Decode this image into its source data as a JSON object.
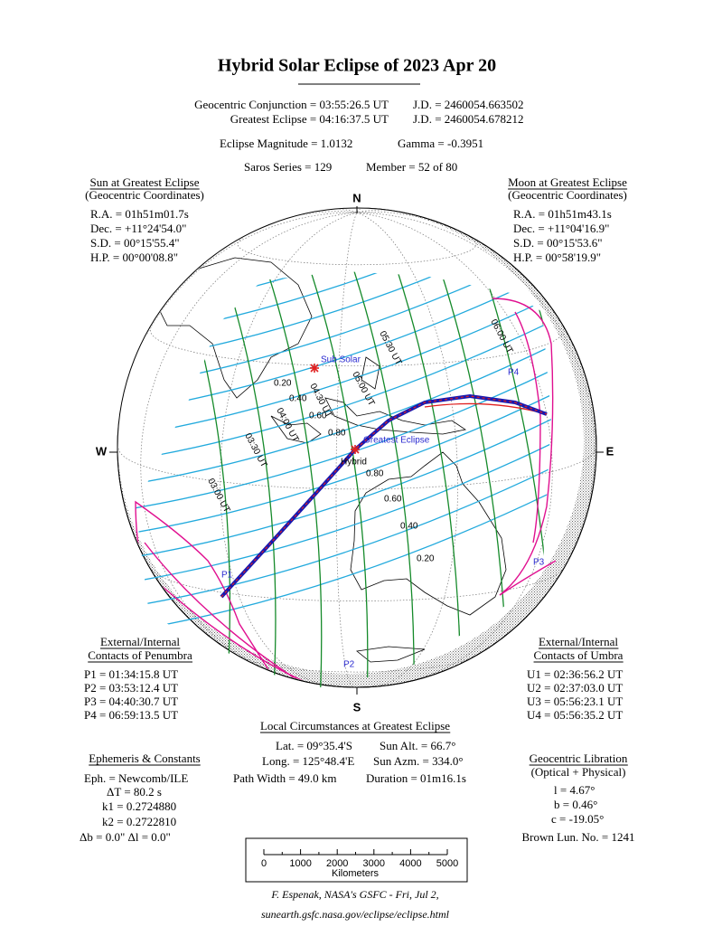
{
  "header": {
    "title": "Hybrid Solar Eclipse of  2023 Apr 20",
    "conjunction": "Geocentric Conjunction = 03:55:26.5 UT",
    "conjunction_jd": "J.D. = 2460054.663502",
    "greatest": "Greatest Eclipse = 04:16:37.5 UT",
    "greatest_jd": "J.D. = 2460054.678212",
    "magnitude": "Eclipse Magnitude = 1.0132",
    "gamma": "Gamma = -0.3951",
    "saros": "Saros Series = 129",
    "member": "Member = 52 of 80"
  },
  "sun": {
    "heading": "Sun at Greatest Eclipse",
    "subheading": "(Geocentric Coordinates)",
    "lines": [
      "R.A. = 01h51m01.7s",
      "Dec. = +11°24'54.0\"",
      "S.D. = 00°15'55.4\"",
      "H.P. = 00°00'08.8\""
    ]
  },
  "moon": {
    "heading": "Moon at Greatest Eclipse",
    "subheading": "(Geocentric Coordinates)",
    "lines": [
      "R.A. = 01h51m43.1s",
      "Dec. = +11°04'16.9\"",
      "S.D. = 00°15'53.6\"",
      "H.P. = 00°58'19.9\""
    ]
  },
  "compass": {
    "n": "N",
    "s": "S",
    "w": "W",
    "e": "E"
  },
  "map_labels": {
    "sub_solar": "Sub Solar",
    "greatest_eclipse": "Greatest Eclipse",
    "hybrid": "Hybrid",
    "contacts": [
      "P1",
      "P2",
      "P3",
      "P4"
    ],
    "magnitudes_north": [
      "0.20",
      "0.40",
      "0.60",
      "0.80"
    ],
    "magnitudes_south": [
      "0.80",
      "0.60",
      "0.40",
      "0.20"
    ],
    "times": [
      "03:00 UT",
      "03:30 UT",
      "04:00 UT",
      "04:30 UT",
      "05:00 UT",
      "05:30 UT",
      "06:00 UT"
    ]
  },
  "penumbra": {
    "heading": [
      "External/Internal",
      "Contacts of Penumbra"
    ],
    "lines": [
      "P1 = 01:34:15.8 UT",
      "P2 = 03:53:12.4 UT",
      "P3 = 04:40:30.7 UT",
      "P4 = 06:59:13.5 UT"
    ]
  },
  "umbra": {
    "heading": [
      "External/Internal",
      "Contacts of Umbra"
    ],
    "lines": [
      "U1 = 02:36:56.2 UT",
      "U2 = 02:37:03.0 UT",
      "U3 = 05:56:23.1 UT",
      "U4 = 05:56:35.2 UT"
    ]
  },
  "local": {
    "heading": "Local Circumstances at Greatest Eclipse",
    "lat": "Lat. =  09°35.4'S",
    "sun_alt": "Sun Alt. =  66.7°",
    "long": "Long. = 125°48.4'E",
    "sun_azm": "Sun Azm. = 334.0°",
    "path_width": "Path Width =  49.0 km",
    "duration": "Duration =  01m16.1s"
  },
  "ephemeris": {
    "heading": "Ephemeris & Constants",
    "eph": "Eph. = Newcomb/ILE",
    "delta_t": "ΔT =    80.2 s",
    "k1": "k1 = 0.2724880",
    "k2": "k2 = 0.2722810",
    "db_dl": "Δb =  0.0\"    Δl =  0.0\""
  },
  "libration": {
    "heading": "Geocentric Libration",
    "subheading": "(Optical + Physical)",
    "l": "l =   4.67°",
    "b": "b =   0.46°",
    "c": "c = -19.05°",
    "brown": "Brown Lun. No. = 1241"
  },
  "scale": {
    "ticks": [
      "0",
      "1000",
      "2000",
      "3000",
      "4000",
      "5000"
    ],
    "unit": "Kilometers"
  },
  "footer": {
    "credit": "F. Espenak, NASA's GSFC - Fri, Jul 2,",
    "url": "sunearth.gsfc.nasa.gov/eclipse/eclipse.html"
  }
}
